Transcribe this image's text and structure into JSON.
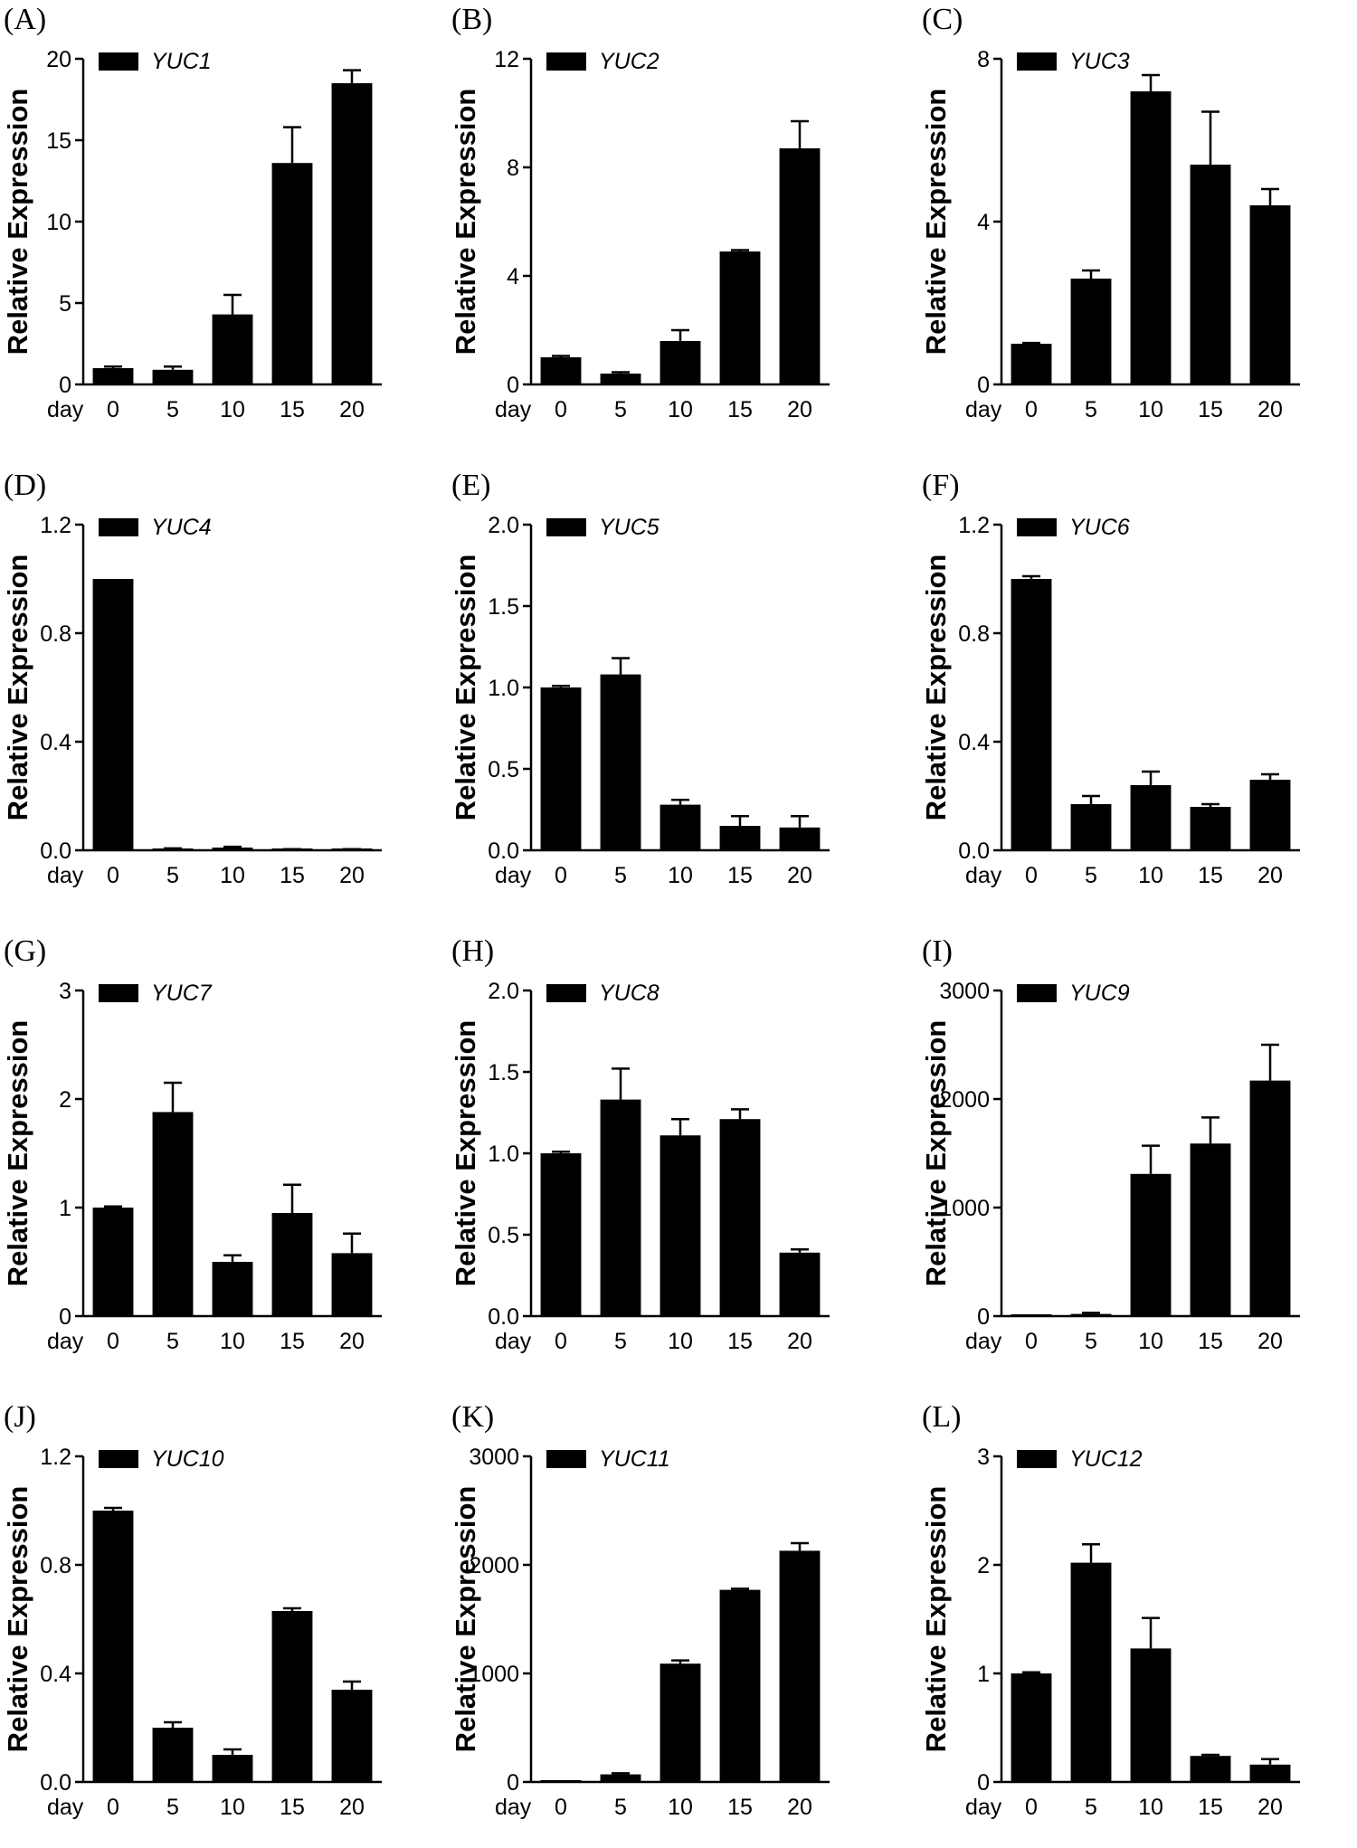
{
  "x_axis_prefix": "day",
  "y_axis_label": "Relative Expression",
  "colors": {
    "bar": "#000000",
    "background": "#ffffff"
  },
  "chart_data": [
    {
      "panel": "(A)",
      "type": "bar",
      "legend": "YUC1",
      "xlabel": "day",
      "ylabel": "Relative Expression",
      "categories": [
        "0",
        "5",
        "10",
        "15",
        "20"
      ],
      "values": [
        1.0,
        0.9,
        4.3,
        13.6,
        18.5
      ],
      "errors": [
        0.1,
        0.2,
        1.2,
        2.2,
        0.8
      ],
      "ylim": [
        0,
        20
      ],
      "yticks": [
        0,
        5,
        10,
        15,
        20
      ],
      "ytick_labels": [
        "0",
        "5",
        "10",
        "15",
        "20"
      ]
    },
    {
      "panel": "(B)",
      "type": "bar",
      "legend": "YUC2",
      "xlabel": "day",
      "ylabel": "Relative Expression",
      "categories": [
        "0",
        "5",
        "10",
        "15",
        "20"
      ],
      "values": [
        1.0,
        0.4,
        1.6,
        4.9,
        8.7
      ],
      "errors": [
        0.05,
        0.05,
        0.4,
        0.05,
        1.0
      ],
      "ylim": [
        0,
        12
      ],
      "yticks": [
        0,
        4,
        8,
        12
      ],
      "ytick_labels": [
        "0",
        "4",
        "8",
        "12"
      ]
    },
    {
      "panel": "(C)",
      "type": "bar",
      "legend": "YUC3",
      "xlabel": "day",
      "ylabel": "Relative Expression",
      "categories": [
        "0",
        "5",
        "10",
        "15",
        "20"
      ],
      "values": [
        1.0,
        2.6,
        7.2,
        5.4,
        4.4
      ],
      "errors": [
        0.02,
        0.2,
        0.4,
        1.3,
        0.4
      ],
      "ylim": [
        0,
        8
      ],
      "yticks": [
        0,
        4,
        8
      ],
      "ytick_labels": [
        "0",
        "4",
        "8"
      ]
    },
    {
      "panel": "(D)",
      "type": "bar",
      "legend": "YUC4",
      "xlabel": "day",
      "ylabel": "Relative Expression",
      "categories": [
        "0",
        "5",
        "10",
        "15",
        "20"
      ],
      "values": [
        1.0,
        0.005,
        0.01,
        0.003,
        0.003
      ],
      "errors": [
        0.0,
        0.002,
        0.003,
        0.001,
        0.001
      ],
      "ylim": [
        0,
        1.2
      ],
      "yticks": [
        0,
        0.4,
        0.8,
        1.2
      ],
      "ytick_labels": [
        "0.0",
        "0.4",
        "0.8",
        "1.2"
      ]
    },
    {
      "panel": "(E)",
      "type": "bar",
      "legend": "YUC5",
      "xlabel": "day",
      "ylabel": "Relative Expression",
      "categories": [
        "0",
        "5",
        "10",
        "15",
        "20"
      ],
      "values": [
        1.0,
        1.08,
        0.28,
        0.15,
        0.14
      ],
      "errors": [
        0.01,
        0.1,
        0.03,
        0.06,
        0.07
      ],
      "ylim": [
        0,
        2.0
      ],
      "yticks": [
        0,
        0.5,
        1.0,
        1.5,
        2.0
      ],
      "ytick_labels": [
        "0.0",
        "0.5",
        "1.0",
        "1.5",
        "2.0"
      ]
    },
    {
      "panel": "(F)",
      "type": "bar",
      "legend": "YUC6",
      "xlabel": "day",
      "ylabel": "Relative Expression",
      "categories": [
        "0",
        "5",
        "10",
        "15",
        "20"
      ],
      "values": [
        1.0,
        0.17,
        0.24,
        0.16,
        0.26
      ],
      "errors": [
        0.01,
        0.03,
        0.05,
        0.01,
        0.02
      ],
      "ylim": [
        0,
        1.2
      ],
      "yticks": [
        0,
        0.4,
        0.8,
        1.2
      ],
      "ytick_labels": [
        "0.0",
        "0.4",
        "0.8",
        "1.2"
      ]
    },
    {
      "panel": "(G)",
      "type": "bar",
      "legend": "YUC7",
      "xlabel": "day",
      "ylabel": "Relative Expression",
      "categories": [
        "0",
        "5",
        "10",
        "15",
        "20"
      ],
      "values": [
        1.0,
        1.88,
        0.5,
        0.95,
        0.58
      ],
      "errors": [
        0.01,
        0.27,
        0.06,
        0.26,
        0.18
      ],
      "ylim": [
        0,
        3
      ],
      "yticks": [
        0,
        1,
        2,
        3
      ],
      "ytick_labels": [
        "0",
        "1",
        "2",
        "3"
      ]
    },
    {
      "panel": "(H)",
      "type": "bar",
      "legend": "YUC8",
      "xlabel": "day",
      "ylabel": "Relative Expression",
      "categories": [
        "0",
        "5",
        "10",
        "15",
        "20"
      ],
      "values": [
        1.0,
        1.33,
        1.11,
        1.21,
        0.39
      ],
      "errors": [
        0.01,
        0.19,
        0.1,
        0.06,
        0.02
      ],
      "ylim": [
        0,
        2.0
      ],
      "yticks": [
        0,
        0.5,
        1.0,
        1.5,
        2.0
      ],
      "ytick_labels": [
        "0.0",
        "0.5",
        "1.0",
        "1.5",
        "2.0"
      ]
    },
    {
      "panel": "(I)",
      "type": "bar",
      "legend": "YUC9",
      "xlabel": "day",
      "ylabel": "Relative Expression",
      "categories": [
        "0",
        "5",
        "10",
        "15",
        "20"
      ],
      "values": [
        1,
        20,
        1310,
        1590,
        2170
      ],
      "errors": [
        0,
        10,
        260,
        240,
        330
      ],
      "ylim": [
        0,
        3000
      ],
      "yticks": [
        0,
        1000,
        2000,
        3000
      ],
      "ytick_labels": [
        "0",
        "1000",
        "2000",
        "3000"
      ]
    },
    {
      "panel": "(J)",
      "type": "bar",
      "legend": "YUC10",
      "xlabel": "day",
      "ylabel": "Relative Expression",
      "categories": [
        "0",
        "5",
        "10",
        "15",
        "20"
      ],
      "values": [
        1.0,
        0.2,
        0.1,
        0.63,
        0.34
      ],
      "errors": [
        0.01,
        0.02,
        0.02,
        0.01,
        0.03
      ],
      "ylim": [
        0,
        1.2
      ],
      "yticks": [
        0,
        0.4,
        0.8,
        1.2
      ],
      "ytick_labels": [
        "0.0",
        "0.4",
        "0.8",
        "1.2"
      ]
    },
    {
      "panel": "(K)",
      "type": "bar",
      "legend": "YUC11",
      "xlabel": "day",
      "ylabel": "Relative Expression",
      "categories": [
        "0",
        "5",
        "10",
        "15",
        "20"
      ],
      "values": [
        1,
        70,
        1090,
        1770,
        2130
      ],
      "errors": [
        0,
        10,
        30,
        10,
        70
      ],
      "ylim": [
        0,
        3000
      ],
      "yticks": [
        0,
        1000,
        2000,
        3000
      ],
      "ytick_labels": [
        "0",
        "1000",
        "2000",
        "3000"
      ]
    },
    {
      "panel": "(L)",
      "type": "bar",
      "legend": "YUC12",
      "xlabel": "day",
      "ylabel": "Relative Expression",
      "categories": [
        "0",
        "5",
        "10",
        "15",
        "20"
      ],
      "values": [
        1.0,
        2.02,
        1.23,
        0.24,
        0.16
      ],
      "errors": [
        0.01,
        0.17,
        0.28,
        0.01,
        0.05
      ],
      "ylim": [
        0,
        3
      ],
      "yticks": [
        0,
        1,
        2,
        3
      ],
      "ytick_labels": [
        "0",
        "1",
        "2",
        "3"
      ]
    }
  ]
}
